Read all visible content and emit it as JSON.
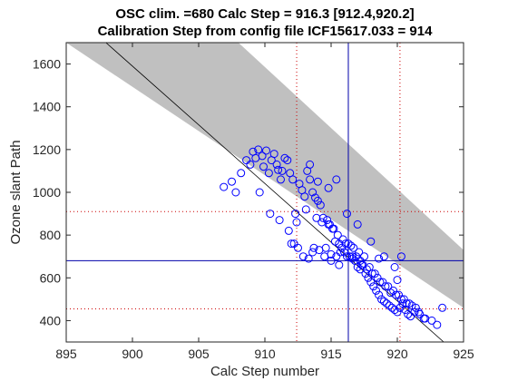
{
  "chart_data": {
    "type": "scatter",
    "title": [
      "OSC clim. =680   Calc Step = 916.3 [912.4,920.2]",
      "Calibration Step from config file ICF15617.033 = 914"
    ],
    "xlabel": "Calc Step number",
    "ylabel": "Ozone slant Path",
    "xlim": [
      895,
      925
    ],
    "ylim": [
      300,
      1700
    ],
    "xticks": [
      895,
      900,
      905,
      910,
      915,
      920,
      925
    ],
    "yticks": [
      400,
      600,
      800,
      1000,
      1200,
      1400,
      1600
    ],
    "grid": false,
    "colors": {
      "points": "#0000ff",
      "band": "#c0c0c0",
      "fit_line": "#000000",
      "reference_lines": "#0000aa",
      "interval_lines": "#cc0000",
      "axes": "#262626"
    },
    "fit_line": {
      "x": [
        898,
        923.5
      ],
      "y": [
        1700,
        300
      ]
    },
    "band": {
      "upper": {
        "x": [
          895,
          925
        ],
        "y": [
          1700,
          460
        ]
      },
      "lower": {
        "x": [
          908,
          925
        ],
        "y": [
          1700,
          730
        ]
      }
    },
    "reference_lines": {
      "vertical_x": 916.3,
      "horizontal_y": 680
    },
    "interval_lines": {
      "vertical_x": [
        912.4,
        920.2
      ],
      "horizontal_y": [
        455,
        910
      ]
    },
    "points": {
      "x": [
        906.9,
        907.5,
        907.8,
        908.2,
        908.6,
        908.9,
        909.1,
        909.3,
        909.5,
        909.8,
        909.9,
        910.1,
        910.3,
        910.5,
        910.7,
        910.9,
        911.0,
        911.2,
        911.3,
        911.5,
        911.7,
        911.9,
        912.1,
        912.3,
        912.4,
        912.6,
        912.8,
        913.0,
        913.2,
        913.4,
        913.6,
        913.8,
        914.0,
        914.2,
        914.4,
        914.7,
        914.9,
        915.1,
        915.3,
        915.6,
        915.8,
        916.0,
        916.2,
        916.4,
        916.6,
        916.8,
        917.0,
        917.2,
        917.4,
        917.6,
        917.8,
        918.0,
        918.2,
        918.4,
        918.6,
        918.8,
        919.0,
        919.2,
        919.4,
        919.6,
        919.8,
        920.0,
        920.2,
        920.4,
        920.6,
        920.8,
        921.0,
        921.3,
        921.7,
        922.1,
        922.6,
        923.0,
        923.4,
        911.8,
        912.2,
        912.5,
        912.9,
        913.3,
        913.6,
        914.1,
        914.6,
        915.0,
        915.4,
        915.7,
        916.1,
        916.5,
        916.9,
        917.3,
        917.7,
        918.1,
        918.5,
        918.9,
        919.3,
        919.7,
        920.1,
        920.5,
        920.9,
        921.4,
        913.1,
        913.9,
        914.3,
        914.8,
        915.2,
        915.5,
        915.9,
        916.3,
        916.7,
        917.1,
        917.5,
        917.9,
        918.3,
        918.7,
        919.1,
        919.5,
        919.9,
        920.3,
        920.7,
        921.1,
        921.6,
        922.0,
        909.6,
        910.4,
        911.1,
        912.0,
        913.7,
        914.5,
        915.0,
        915.6,
        916.0,
        916.6,
        917.2,
        918.6,
        919.8,
        920.3,
        913.4,
        914.0,
        914.8,
        915.4,
        916.2,
        917.0,
        918.0,
        919.0,
        920.0
      ],
      "y": [
        1025,
        1050,
        1000,
        1090,
        1150,
        1130,
        1190,
        1160,
        1200,
        1170,
        1120,
        1195,
        1090,
        1150,
        1180,
        1130,
        1105,
        1060,
        1100,
        1160,
        1150,
        1090,
        1060,
        900,
        860,
        1040,
        1010,
        980,
        1100,
        1060,
        1000,
        975,
        960,
        940,
        880,
        870,
        850,
        830,
        770,
        760,
        740,
        720,
        700,
        700,
        690,
        680,
        650,
        640,
        660,
        620,
        600,
        580,
        560,
        540,
        520,
        500,
        490,
        480,
        470,
        460,
        450,
        440,
        460,
        480,
        450,
        430,
        420,
        440,
        430,
        410,
        400,
        380,
        460,
        820,
        760,
        740,
        700,
        690,
        720,
        730,
        740,
        710,
        700,
        720,
        760,
        750,
        700,
        660,
        640,
        620,
        600,
        580,
        560,
        540,
        520,
        500,
        480,
        460,
        920,
        880,
        860,
        850,
        830,
        800,
        780,
        760,
        740,
        720,
        700,
        650,
        620,
        580,
        560,
        530,
        520,
        500,
        480,
        470,
        440,
        410,
        1000,
        900,
        870,
        760,
        740,
        700,
        680,
        660,
        720,
        700,
        680,
        690,
        650,
        700,
        1130,
        1050,
        1020,
        1060,
        900,
        850,
        770,
        700,
        590
      ]
    }
  }
}
